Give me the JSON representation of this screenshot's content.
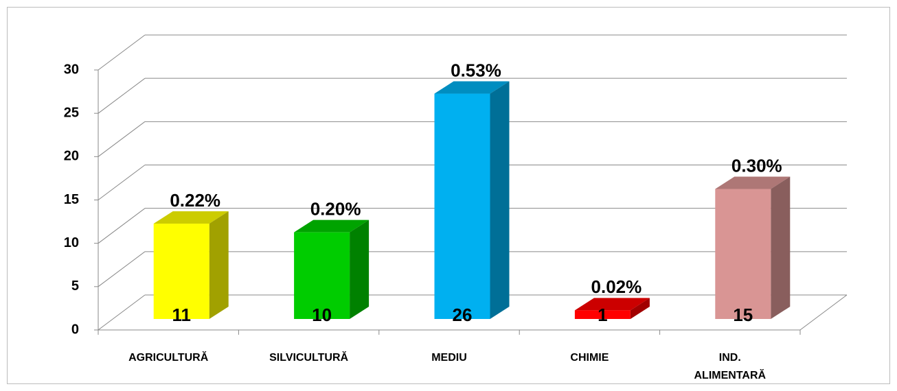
{
  "chart_data": {
    "type": "bar3d",
    "categories": [
      "AGRICULTURĂ",
      "SILVICULTURĂ",
      "MEDIU",
      "CHIMIE",
      "IND. ALIMENTARĂ"
    ],
    "values": [
      11,
      10,
      26,
      1,
      15
    ],
    "percent_labels": [
      "0.22%",
      "0.20%",
      "0.53%",
      "0.02%",
      "0.30%"
    ],
    "colors": [
      "#ffff00",
      "#00cc00",
      "#00b0f0",
      "#ff0000",
      "#d99594"
    ],
    "ylim": [
      0,
      30
    ],
    "yticks": [
      0,
      5,
      10,
      15,
      20,
      25,
      30
    ],
    "grid": true
  }
}
